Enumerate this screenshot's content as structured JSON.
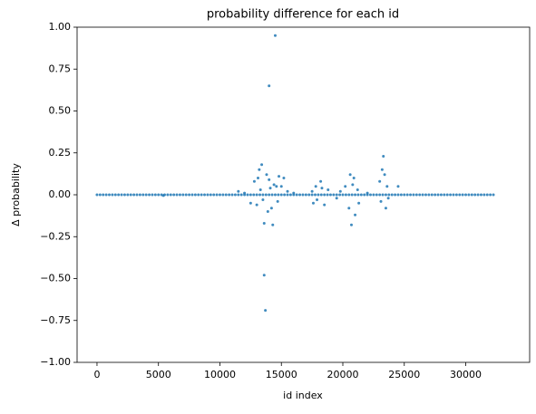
{
  "chart_data": {
    "type": "scatter",
    "title": "probability difference for each id",
    "xlabel": "id index",
    "ylabel": "Δ probability",
    "xlim": [
      -1620,
      35200
    ],
    "ylim": [
      -1,
      1
    ],
    "xticks": [
      0,
      5000,
      10000,
      15000,
      20000,
      25000,
      30000
    ],
    "yticks": [
      {
        "value": -1,
        "label": "−1.00"
      },
      {
        "value": -0.75,
        "label": "−0.75"
      },
      {
        "value": -0.5,
        "label": "−0.50"
      },
      {
        "value": -0.25,
        "label": "−0.25"
      },
      {
        "value": 0,
        "label": "0.00"
      },
      {
        "value": 0.25,
        "label": "0.25"
      },
      {
        "value": 0.5,
        "label": "0.50"
      },
      {
        "value": 0.75,
        "label": "0.75"
      },
      {
        "value": 1,
        "label": "1.00"
      }
    ],
    "series": [
      {
        "color": "#1f77b4",
        "x": [
          0,
          250,
          500,
          750,
          1000,
          1250,
          1500,
          1750,
          2000,
          2250,
          2500,
          2750,
          3000,
          3250,
          3500,
          3750,
          4000,
          4250,
          4500,
          4750,
          5000,
          5250,
          5500,
          5750,
          6000,
          6250,
          6500,
          6750,
          7000,
          7250,
          7500,
          7750,
          8000,
          8250,
          8500,
          8750,
          9000,
          9250,
          9500,
          9750,
          10000,
          10250,
          10500,
          10750,
          11000,
          11250,
          11500,
          11750,
          12000,
          12250,
          12500,
          12750,
          13000,
          13250,
          13500,
          13750,
          14000,
          14250,
          14500,
          14750,
          15000,
          15250,
          15500,
          15750,
          16000,
          16250,
          16500,
          16750,
          17000,
          17250,
          17500,
          17750,
          18000,
          18250,
          18500,
          18750,
          19000,
          19250,
          19500,
          19750,
          20000,
          20250,
          20500,
          20750,
          21000,
          21250,
          21500,
          21750,
          22000,
          22250,
          22500,
          22750,
          23000,
          23250,
          23500,
          23750,
          24000,
          24250,
          24500,
          24750,
          25000,
          25250,
          25500,
          25750,
          26000,
          26250,
          26500,
          26750,
          27000,
          27250,
          27500,
          27750,
          28000,
          28250,
          28500,
          28750,
          29000,
          29250,
          29500,
          29750,
          30000,
          30250,
          30500,
          30750,
          31000,
          31250,
          31500,
          31750,
          32000,
          32250
        ],
        "values": [
          0,
          0,
          0,
          0,
          0,
          0,
          0,
          0,
          0,
          0,
          0,
          0,
          0,
          0,
          0,
          0,
          0,
          0,
          0,
          0,
          0,
          0,
          0,
          0,
          0,
          0,
          0,
          0,
          0,
          0,
          0,
          0,
          0,
          0,
          0,
          0,
          0,
          0,
          0,
          0,
          0,
          0,
          0,
          0,
          0,
          0,
          0,
          0,
          0,
          0,
          0,
          0,
          0,
          0,
          0,
          0,
          0,
          0,
          0,
          0,
          0,
          0,
          0,
          0,
          0,
          0,
          0,
          0,
          0,
          0,
          0,
          0,
          0,
          0,
          0,
          0,
          0,
          0,
          0,
          0,
          0,
          0,
          0,
          0,
          0,
          0,
          0,
          0,
          0,
          0,
          0,
          0,
          0,
          0,
          0,
          0,
          0,
          0,
          0,
          0,
          0,
          0,
          0,
          0,
          0,
          0,
          0,
          0,
          0,
          0,
          0,
          0,
          0,
          0,
          0,
          0,
          0,
          0,
          0,
          0,
          0,
          0,
          0,
          0,
          0,
          0,
          0,
          0,
          0,
          0
        ]
      },
      {
        "color": "#1f77b4",
        "x": [
          14500,
          14000,
          13600,
          13700,
          13400,
          13200,
          14800,
          15200,
          13600,
          14300,
          23300,
          23200,
          23400,
          20600,
          20900,
          20700,
          21000,
          18200,
          17800,
          23500,
          24500,
          14000,
          13800,
          12800,
          12500,
          11500,
          13000,
          14200,
          13900,
          15000,
          15500,
          16000,
          17500,
          17600,
          18500,
          18800,
          19500,
          20200,
          20500,
          21200,
          21300,
          22000,
          23000,
          23600,
          23100,
          23700,
          14600,
          13300,
          13500,
          14100,
          12000,
          5400,
          14400,
          13100,
          14700,
          17900,
          18300,
          20800,
          19800
        ],
        "values": [
          0.95,
          0.65,
          -0.48,
          -0.69,
          0.18,
          0.15,
          0.11,
          0.1,
          -0.17,
          -0.18,
          0.23,
          0.15,
          0.12,
          0.12,
          0.1,
          -0.18,
          -0.12,
          0.08,
          0.05,
          -0.08,
          0.05,
          0.09,
          0.12,
          0.08,
          -0.05,
          0.02,
          -0.06,
          -0.08,
          -0.1,
          0.05,
          0.02,
          0.01,
          0.02,
          -0.05,
          -0.06,
          0.03,
          -0.02,
          0.05,
          -0.08,
          0.03,
          -0.05,
          0.01,
          0.08,
          0.05,
          -0.04,
          -0.02,
          0.05,
          0.03,
          -0.03,
          0.04,
          0.01,
          -0.005,
          0.06,
          0.1,
          -0.04,
          -0.03,
          0.04,
          0.06,
          0.02
        ]
      }
    ]
  }
}
